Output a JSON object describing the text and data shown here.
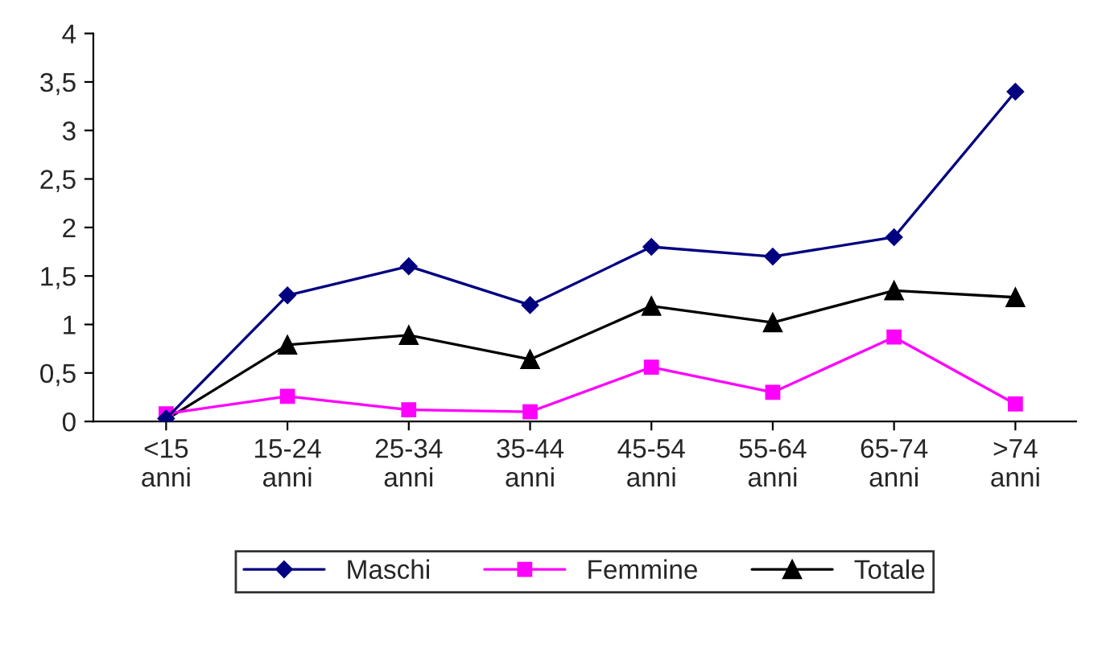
{
  "chart_data": {
    "type": "line",
    "categories": [
      "<15\nanni",
      "15-24\nanni",
      "25-34\nanni",
      "35-44\nanni",
      "45-54\nanni",
      "55-64\nanni",
      "65-74\nanni",
      ">74\nanni"
    ],
    "series": [
      {
        "name": "Maschi",
        "color": "#000080",
        "marker": "diamond",
        "values": [
          0.03,
          1.3,
          1.6,
          1.2,
          1.8,
          1.7,
          1.9,
          3.4
        ]
      },
      {
        "name": "Femmine",
        "color": "#ff00ff",
        "marker": "square",
        "values": [
          0.08,
          0.26,
          0.12,
          0.1,
          0.56,
          0.3,
          0.87,
          0.18
        ]
      },
      {
        "name": "Totale",
        "color": "#000000",
        "marker": "triangle",
        "values": [
          0.02,
          0.79,
          0.89,
          0.64,
          1.19,
          1.02,
          1.35,
          1.28
        ]
      }
    ],
    "ylim": [
      0,
      4
    ],
    "yticks": [
      0,
      {
        "value": 0.5,
        "label": "0,5"
      },
      1,
      {
        "value": 1.5,
        "label": "1,5"
      },
      2,
      {
        "value": 2.5,
        "label": "2,5"
      },
      3,
      {
        "value": 3.5,
        "label": "3,5"
      },
      4
    ],
    "grid": false,
    "legend": "bottom",
    "line_style": "solid"
  }
}
